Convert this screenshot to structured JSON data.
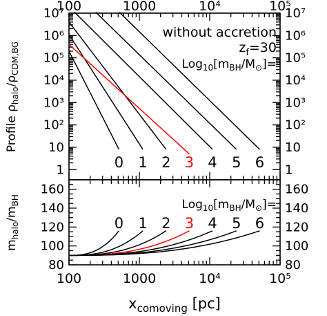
{
  "chart_data": [
    {
      "type": "line",
      "panel": "top",
      "x_scale": "log",
      "y_scale": "log",
      "xlim": [
        100,
        100000
      ],
      "ylim": [
        0.35,
        10000000
      ],
      "ylabel_main": "Profile ρ",
      "ylabel_sub": "halo",
      "ylabel_mid": "/ρ",
      "ylabel_sub2": "CDM,BG",
      "top_ticks": [
        "100",
        "1000",
        "10⁴",
        "10⁵"
      ],
      "y_ticks": [
        "1",
        "10",
        "10²",
        "10³",
        "10⁴",
        "10⁵",
        "10⁶",
        "10⁷"
      ],
      "right_ticks": [
        "10⁷",
        "10⁶",
        "10⁵",
        "10⁴",
        "10³",
        "10²",
        "10",
        "1"
      ],
      "annotation_1": "without accretion",
      "annotation_2_main": "z",
      "annotation_2_sub": "f",
      "annotation_2_rest": "=30",
      "legend_prefix": "Log",
      "legend_prefix_sub": "10",
      "legend_body": "[m",
      "legend_body_sub": "BH",
      "legend_body_rest": "/M",
      "legend_body_sub2": "⊙",
      "legend_suffix": "]=",
      "series": [
        {
          "name": "0",
          "color": "#000000",
          "points": [
            [
              100,
              200000
            ],
            [
              513,
              8
            ]
          ]
        },
        {
          "name": "1",
          "color": "#000000",
          "points": [
            [
              100,
              1100000
            ],
            [
              1122,
              8
            ]
          ]
        },
        {
          "name": "2",
          "color": "#000000",
          "points": [
            [
              100,
              4000000
            ],
            [
              2399,
              8
            ]
          ]
        },
        {
          "name": "3",
          "color": "#ff0000",
          "points": [
            [
              100,
              400000
            ],
            [
              5128,
              5
            ]
          ]
        },
        {
          "name": "4",
          "color": "#000000",
          "points": [
            [
              120,
              11000000
            ],
            [
              10965,
              8
            ]
          ]
        },
        {
          "name": "5",
          "color": "#000000",
          "points": [
            [
              240,
              11000000
            ],
            [
              23988,
              8
            ]
          ]
        },
        {
          "name": "6",
          "color": "#000000",
          "points": [
            [
              520,
              11000000
            ],
            [
              51286,
              8
            ]
          ]
        }
      ]
    },
    {
      "type": "line",
      "panel": "bottom",
      "x_scale": "log",
      "xlim": [
        100,
        100000
      ],
      "ylim": [
        80,
        170
      ],
      "xlabel_main": "x",
      "xlabel_sub": "comoving",
      "xlabel_rest": " [pc]",
      "ylabel_main": "m",
      "ylabel_sub": "halo",
      "ylabel_mid": "/m",
      "ylabel_sub2": "BH",
      "x_ticks": [
        "100",
        "1000",
        "10⁴",
        "10⁵"
      ],
      "y_ticks": [
        "80",
        "100",
        "120",
        "140",
        "160"
      ],
      "right_ticks": [
        "160",
        "140",
        "120",
        "100",
        "80"
      ],
      "legend_prefix": "Log",
      "legend_prefix_sub": "10",
      "legend_body": "[m",
      "legend_body_sub": "BH",
      "legend_body_rest": "/M",
      "legend_body_sub2": "⊙",
      "legend_suffix": "]=",
      "series": [
        {
          "name": "0",
          "color": "#000000",
          "x_end": 513,
          "y_end": 116
        },
        {
          "name": "1",
          "color": "#000000",
          "x_end": 1122,
          "y_end": 116
        },
        {
          "name": "2",
          "color": "#000000",
          "x_end": 2399,
          "y_end": 116
        },
        {
          "name": "3",
          "color": "#ff0000",
          "x_end": 5128,
          "y_end": 116
        },
        {
          "name": "4",
          "color": "#000000",
          "x_end": 10965,
          "y_end": 116
        },
        {
          "name": "5",
          "color": "#000000",
          "x_end": 23988,
          "y_end": 116
        },
        {
          "name": "6",
          "color": "#000000",
          "x_end": 51286,
          "y_end": 116
        }
      ],
      "y_start": 90
    }
  ]
}
